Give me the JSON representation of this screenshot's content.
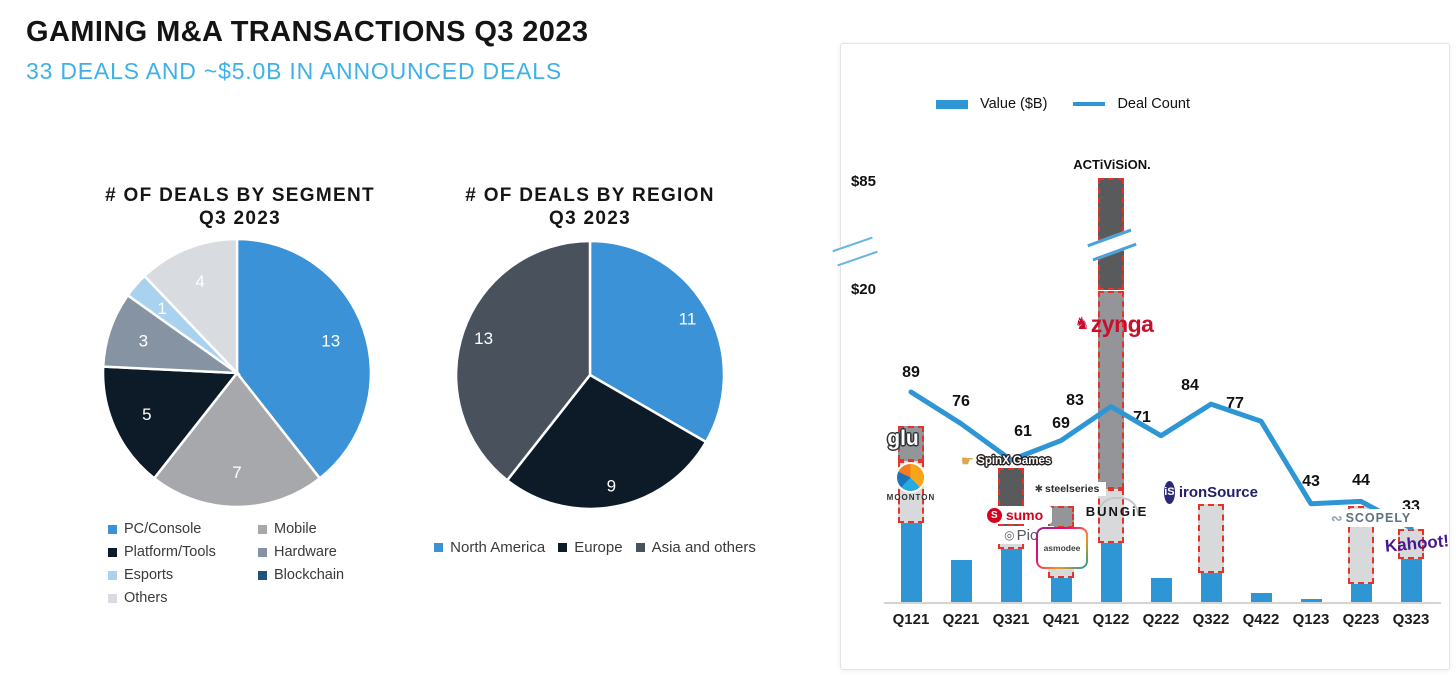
{
  "header": {
    "title": "GAMING M&A TRANSACTIONS Q3 2023",
    "subtitle": "33 DEALS AND ~$5.0B IN ANNOUNCED DEALS"
  },
  "chart_data": [
    {
      "type": "pie",
      "title": "# OF DEALS BY SEGMENT Q3 2023",
      "title_lines": [
        "# OF DEALS BY SEGMENT",
        "Q3 2023"
      ],
      "categories": [
        "PC/Console",
        "Mobile",
        "Platform/Tools",
        "Hardware",
        "Esports",
        "Others"
      ],
      "values": [
        13,
        7,
        5,
        3,
        1,
        4
      ],
      "colors": [
        "#3B92D6",
        "#A6A8AB",
        "#0D1B29",
        "#8593A3",
        "#A9D2EF",
        "#D8DBE0"
      ],
      "total": 33,
      "legend_position": "bottom",
      "legend": [
        {
          "label": "PC/Console",
          "color": "#3B92D6"
        },
        {
          "label": "Mobile",
          "color": "#A6A8AB"
        },
        {
          "label": "Platform/Tools",
          "color": "#0D1B29"
        },
        {
          "label": "Hardware",
          "color": "#8593A3"
        },
        {
          "label": "Esports",
          "color": "#A9D2EF"
        },
        {
          "label": "Blockchain",
          "color": "#1F5377"
        },
        {
          "label": "Others",
          "color": "#D8DBE0"
        }
      ]
    },
    {
      "type": "pie",
      "title": "# OF DEALS BY REGION Q3 2023",
      "title_lines": [
        "# OF DEALS BY REGION",
        "Q3 2023"
      ],
      "categories": [
        "North America",
        "Europe",
        "Asia and others"
      ],
      "values": [
        11,
        9,
        13
      ],
      "colors": [
        "#3B92D6",
        "#0D1B29",
        "#49525C"
      ],
      "total": 33,
      "legend_position": "bottom",
      "legend": [
        {
          "label": "North America",
          "color": "#3B92D6"
        },
        {
          "label": "Europe",
          "color": "#0D1B29"
        },
        {
          "label": "Asia and others",
          "color": "#49525C"
        }
      ]
    },
    {
      "type": "bar+line",
      "categories": [
        "Q121",
        "Q221",
        "Q321",
        "Q421",
        "Q122",
        "Q222",
        "Q322",
        "Q422",
        "Q123",
        "Q223",
        "Q323"
      ],
      "series": [
        {
          "name": "Value ($B)",
          "type": "bar",
          "color": "#2E96D5",
          "values": [
            11.3,
            2.7,
            8.6,
            6.2,
            88.7,
            1.6,
            6.3,
            0.6,
            0.2,
            6.2,
            4.7
          ]
        },
        {
          "name": "Deal Count",
          "type": "line",
          "color": "#2E96D5",
          "values": [
            89,
            76,
            61,
            69,
            83,
            71,
            84,
            77,
            43,
            44,
            33
          ]
        }
      ],
      "y_axis": {
        "labels": [
          "$85",
          "$20"
        ],
        "axis_break": true
      },
      "style": {
        "bar_color": "#2E96D5",
        "line_color": "#2E96D5",
        "dashed_border": "#E63229",
        "shade_colors": {
          "light": "#D8D9DB",
          "mid": "#939598",
          "dark": "#595A5C"
        }
      },
      "bars_detail": [
        {
          "category": "Q121",
          "base": 5.1,
          "segments": [
            {
              "company": "Moonton",
              "value": 4.0,
              "shade": "light"
            },
            {
              "company": "Glu",
              "value": 2.2,
              "shade": "mid"
            }
          ]
        },
        {
          "category": "Q221",
          "base": 2.7,
          "segments": []
        },
        {
          "category": "Q321",
          "base": 3.4,
          "segments": [
            {
              "company": "Pico",
              "value": 1.5,
              "shade": "light"
            },
            {
              "company": "Sumo / SpinX Games",
              "value": 3.7,
              "shade": "dark"
            }
          ]
        },
        {
          "category": "Q421",
          "base": 1.6,
          "segments": [
            {
              "company": "Asmodee",
              "value": 3.2,
              "shade": "light"
            },
            {
              "company": "SteelSeries",
              "value": 1.4,
              "shade": "mid"
            }
          ]
        },
        {
          "category": "Q122",
          "base": 3.8,
          "segments": [
            {
              "company": "Bungie",
              "value": 3.5,
              "shade": "light"
            },
            {
              "company": "Zynga",
              "value": 12.7,
              "shade": "mid"
            },
            {
              "company": "Activision",
              "value": 68.7,
              "shade": "dark"
            }
          ]
        },
        {
          "category": "Q222",
          "base": 1.6,
          "segments": []
        },
        {
          "category": "Q322",
          "base": 1.9,
          "segments": [
            {
              "company": "ironSource",
              "value": 4.4,
              "shade": "light"
            }
          ]
        },
        {
          "category": "Q422",
          "base": 0.6,
          "segments": []
        },
        {
          "category": "Q123",
          "base": 0.2,
          "segments": []
        },
        {
          "category": "Q223",
          "base": 1.2,
          "segments": [
            {
              "company": "Scopely",
              "value": 5.0,
              "shade": "light"
            }
          ]
        },
        {
          "category": "Q323",
          "base": 2.8,
          "segments": [
            {
              "company": "Kahoot!",
              "value": 1.9,
              "shade": "light"
            }
          ]
        }
      ],
      "logos": {
        "glu": "glu",
        "moonton": "MOONTON",
        "spinx": "SpinX Games",
        "sumo": "sumo",
        "sumo_icon": "S",
        "pico": "Pico",
        "steelseries": "steelseries",
        "asmodee": "asmodee",
        "bungie": "BUNGiE",
        "activision": "ACTiViSiON.",
        "zynga": "zynga",
        "ironsource_icon": "iS",
        "ironsource": "ironSource",
        "scopely": "SCOPELY",
        "kahoot": "Kahoot!"
      },
      "icons": {
        "spinx_hand": "☛",
        "steelseries_gear": "✱",
        "zynga_dog": "♞",
        "scopely_knot": "∾",
        "pico_circle": "◎"
      }
    }
  ]
}
